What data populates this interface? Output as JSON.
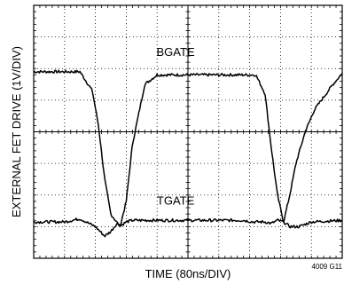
{
  "chart_data": {
    "type": "line",
    "title": "",
    "xlabel": "TIME (80ns/DIV)",
    "ylabel": "EXTERNAL FET DRIVE (1V/DIV)",
    "figure_id": "4009 G11",
    "x_divisions": 10,
    "y_divisions": 8,
    "grid": true,
    "xlim": [
      0,
      10
    ],
    "ylim": [
      -4,
      4
    ],
    "series": [
      {
        "name": "BGATE",
        "x": [
          0,
          1.5,
          1.9,
          2.1,
          2.3,
          2.5,
          2.8,
          3.0,
          3.2,
          3.6,
          4.0,
          7.2,
          7.5,
          7.7,
          7.9,
          8.1,
          8.3,
          8.5,
          8.8,
          9.1,
          9.4,
          9.7,
          10.0
        ],
        "y": [
          1.9,
          1.9,
          1.3,
          0.2,
          -1.5,
          -2.6,
          -3.0,
          -2.2,
          -0.4,
          1.5,
          1.8,
          1.8,
          1.2,
          -0.5,
          -2.0,
          -2.85,
          -2.0,
          -1.0,
          0.0,
          0.7,
          1.1,
          1.5,
          1.85
        ],
        "label_position": [
          4.6,
          2.4
        ]
      },
      {
        "name": "TGATE",
        "x": [
          0,
          1.0,
          1.5,
          2.0,
          2.3,
          2.5,
          2.7,
          2.85,
          3.0,
          3.2,
          3.5,
          4.0,
          6.8,
          7.1,
          7.5,
          7.7,
          7.9,
          8.1,
          8.3,
          8.6,
          9.0,
          10.0
        ],
        "y": [
          -2.85,
          -2.85,
          -2.75,
          -3.0,
          -3.3,
          -3.15,
          -2.9,
          -2.95,
          -2.85,
          -2.8,
          -2.8,
          -2.8,
          -2.8,
          -2.85,
          -2.85,
          -2.9,
          -2.8,
          -2.85,
          -3.0,
          -3.0,
          -2.85,
          -2.8
        ],
        "label_position": [
          4.6,
          -2.3
        ]
      }
    ]
  }
}
